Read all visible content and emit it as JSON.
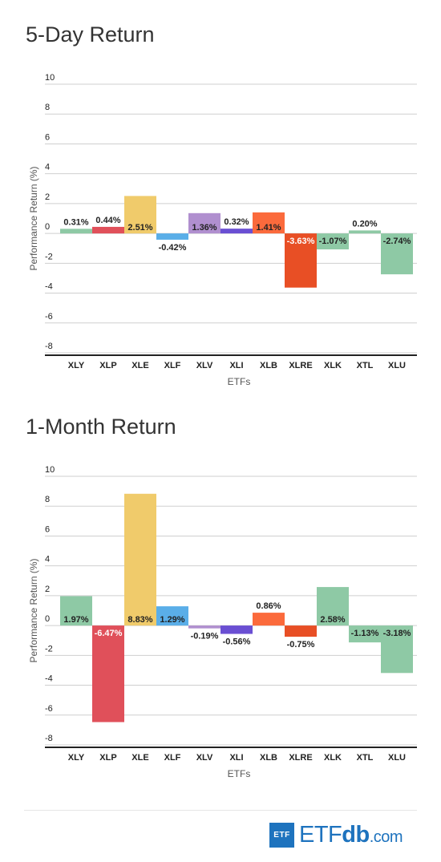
{
  "chart_data": [
    {
      "type": "bar",
      "title": "5-Day Return",
      "xlabel": "ETFs",
      "ylabel": "Performance Return (%)",
      "ylim": [
        -8,
        10
      ],
      "yticks": [
        10,
        8,
        6,
        4,
        2,
        0,
        -2,
        -4,
        -6,
        -8
      ],
      "grid": true,
      "categories": [
        "XLY",
        "XLP",
        "XLE",
        "XLF",
        "XLV",
        "XLI",
        "XLB",
        "XLRE",
        "XLK",
        "XTL",
        "XLU"
      ],
      "values": [
        0.31,
        0.44,
        2.51,
        -0.42,
        1.36,
        0.32,
        1.41,
        -3.63,
        -1.07,
        0.2,
        -2.74
      ],
      "labels": [
        "0.31%",
        "0.44%",
        "2.51%",
        "-0.42%",
        "1.36%",
        "0.32%",
        "1.41%",
        "-3.63%",
        "-1.07%",
        "0.20%",
        "-2.74%"
      ],
      "colors": [
        "#8ec9a5",
        "#e0505a",
        "#f0cb6b",
        "#5aaee8",
        "#b08fcf",
        "#6a4fd3",
        "#fb6a3c",
        "#e84f25",
        "#8ec9a5",
        "#8ec9a5",
        "#8ec9a5"
      ]
    },
    {
      "type": "bar",
      "title": "1-Month Return",
      "xlabel": "ETFs",
      "ylabel": "Performance Return (%)",
      "ylim": [
        -8,
        10
      ],
      "yticks": [
        10,
        8,
        6,
        4,
        2,
        0,
        -2,
        -4,
        -6,
        -8
      ],
      "grid": true,
      "categories": [
        "XLY",
        "XLP",
        "XLE",
        "XLF",
        "XLV",
        "XLI",
        "XLB",
        "XLRE",
        "XLK",
        "XTL",
        "XLU"
      ],
      "values": [
        1.97,
        -6.47,
        8.83,
        1.29,
        -0.19,
        -0.56,
        0.86,
        -0.75,
        2.58,
        -1.13,
        -3.18
      ],
      "labels": [
        "1.97%",
        "-6.47%",
        "8.83%",
        "1.29%",
        "-0.19%",
        "-0.56%",
        "0.86%",
        "-0.75%",
        "2.58%",
        "-1.13%",
        "-3.18%"
      ],
      "colors": [
        "#8ec9a5",
        "#e0505a",
        "#f0cb6b",
        "#5aaee8",
        "#b08fcf",
        "#6a4fd3",
        "#fb6a3c",
        "#e84f25",
        "#8ec9a5",
        "#8ec9a5",
        "#8ec9a5"
      ]
    }
  ],
  "logo": {
    "badge": "ETF",
    "name_a": "ETF",
    "name_b": "db",
    "suffix": ".com"
  }
}
